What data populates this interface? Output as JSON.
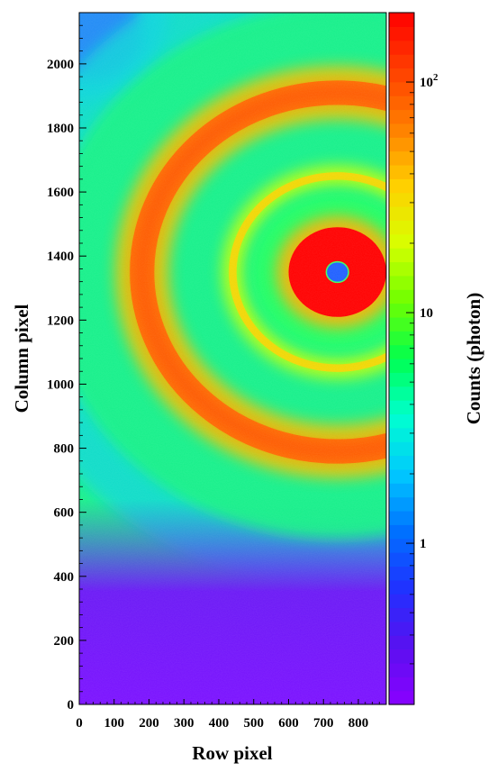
{
  "chart_data": {
    "type": "heatmap",
    "title": "",
    "xlabel": "Row pixel",
    "ylabel": "Column pixel",
    "colorbar_label": "Counts (photon)",
    "xlim": [
      0,
      880
    ],
    "ylim": [
      0,
      2160
    ],
    "x_ticks": [
      "0",
      "100",
      "200",
      "300",
      "400",
      "500",
      "600",
      "700",
      "800"
    ],
    "y_ticks": [
      "0",
      "200",
      "400",
      "600",
      "800",
      "1000",
      "1200",
      "1400",
      "1600",
      "1800",
      "2000"
    ],
    "colorbar": {
      "scale": "log",
      "range": [
        0.2,
        200
      ],
      "ticks": [
        {
          "value": 1,
          "label": "1"
        },
        {
          "value": 10,
          "label": "10"
        },
        {
          "value": 100,
          "label": "10",
          "sup": "2"
        }
      ],
      "colors": [
        "#8a00ff",
        "#5a10f0",
        "#2030ff",
        "#0070ff",
        "#00c8ff",
        "#00ffd0",
        "#00ff50",
        "#70ff00",
        "#d8ff00",
        "#ffd000",
        "#ff8000",
        "#ff4000",
        "#ff0000"
      ]
    },
    "features": {
      "beam_center": {
        "x": 740,
        "y": 1350
      },
      "beam_stop_radius": 30,
      "bright_core_radius": 140,
      "inner_ring_radius": 300,
      "outer_ring_radius": 560,
      "outer_ring_width": 70,
      "background_edge_y": 500
    }
  }
}
